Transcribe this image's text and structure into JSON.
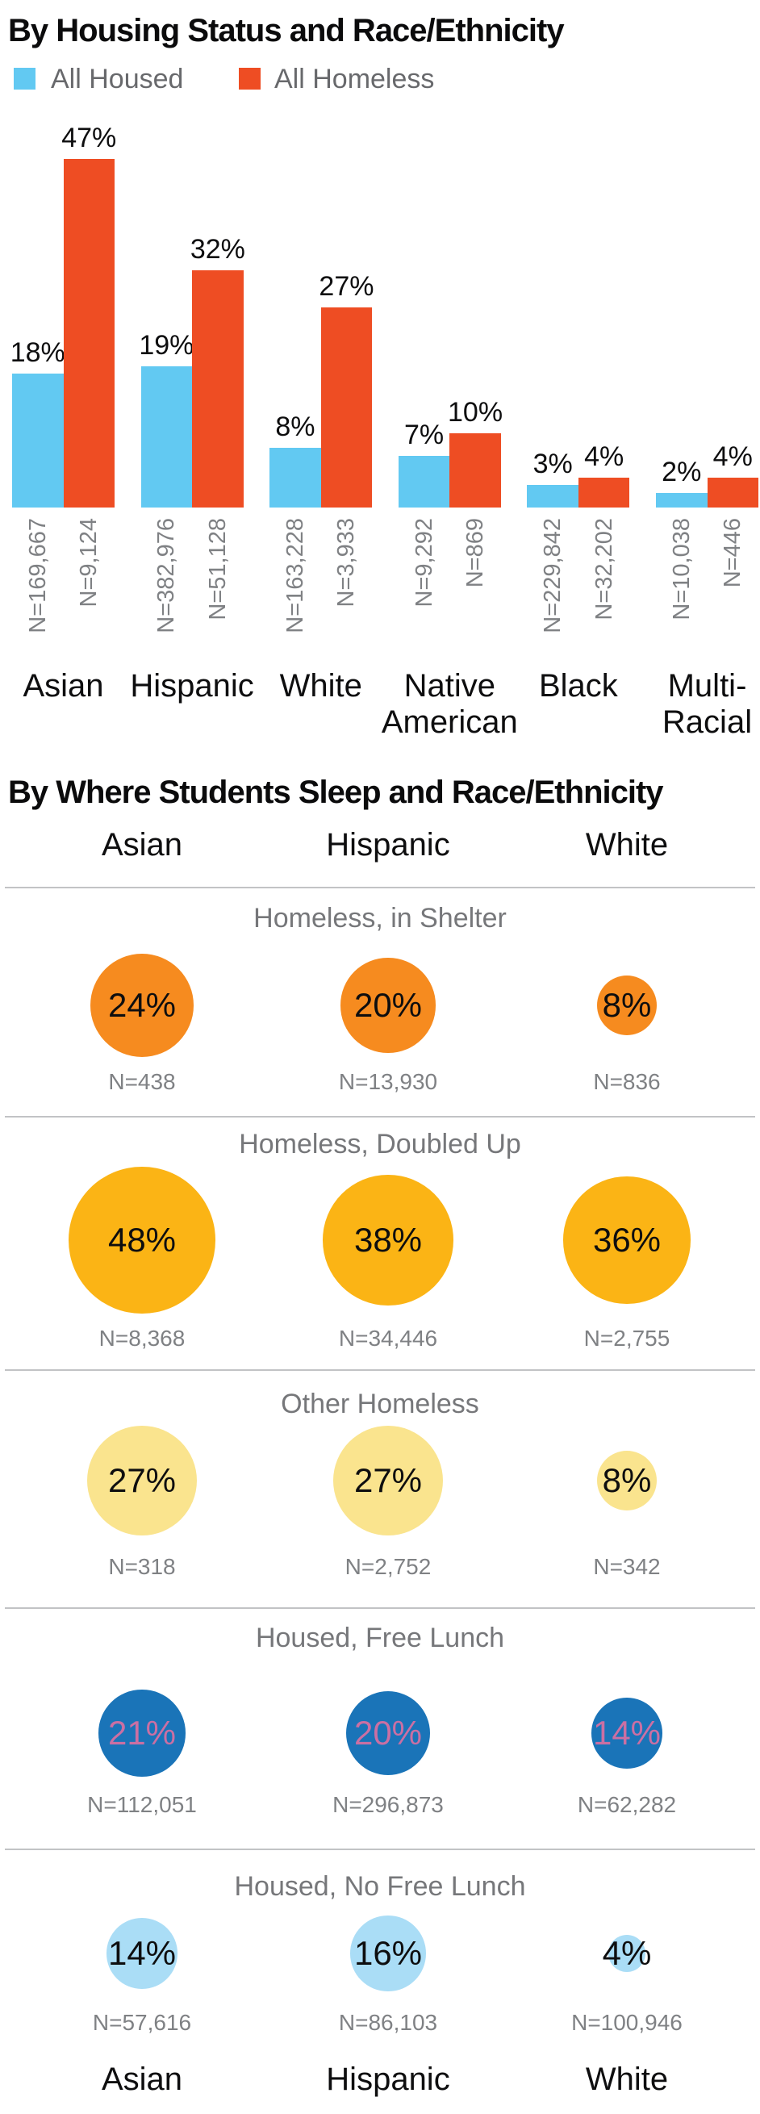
{
  "chart_data": [
    {
      "type": "bar",
      "title": "By Housing Status and Race/Ethnicity",
      "categories": [
        "Asian",
        "Hispanic",
        "White",
        "Native American",
        "Black",
        "Multi-Racial"
      ],
      "value_suffix": "%",
      "legend_position": "top-left",
      "ylim": [
        0,
        50
      ],
      "grid": false,
      "series": [
        {
          "name": "All Housed",
          "color": "#62c9f2",
          "values_pct": [
            18,
            19,
            8,
            7,
            3,
            2
          ],
          "n_labels": [
            "N=169,667",
            "N=382,976",
            "N=163,228",
            "N=9,292",
            "N=229,842",
            "N=10,038"
          ]
        },
        {
          "name": "All Homeless",
          "color": "#ee4d23",
          "values_pct": [
            47,
            32,
            27,
            10,
            4,
            4
          ],
          "n_labels": [
            "N=9,124",
            "N=51,128",
            "N=3,933",
            "N=869",
            "N=32,202",
            "N=446"
          ]
        }
      ]
    },
    {
      "type": "bubble-matrix",
      "title": "By Where Students Sleep and Race/Ethnicity",
      "columns": [
        "Asian",
        "Hispanic",
        "White"
      ],
      "footer_columns": [
        "Asian",
        "Hispanic",
        "White"
      ],
      "value_suffix": "%",
      "rows": [
        {
          "label": "Homeless, in Shelter",
          "color": "#f68b1f",
          "text_color": "#0e0e0f",
          "values_pct": [
            24,
            20,
            8
          ],
          "n_labels": [
            "N=438",
            "N=13,930",
            "N=836"
          ]
        },
        {
          "label": "Homeless, Doubled Up",
          "color": "#fbb415",
          "text_color": "#0e0e0f",
          "values_pct": [
            48,
            38,
            36
          ],
          "n_labels": [
            "N=8,368",
            "N=34,446",
            "N=2,755"
          ]
        },
        {
          "label": "Other Homeless",
          "color": "#fae48e",
          "text_color": "#0e0e0f",
          "values_pct": [
            27,
            27,
            8
          ],
          "n_labels": [
            "N=318",
            "N=2,752",
            "N=342"
          ]
        },
        {
          "label": "Housed, Free Lunch",
          "color": "#1a74b8",
          "text_color": "#cb6fa3",
          "values_pct": [
            21,
            20,
            14
          ],
          "n_labels": [
            "N=112,051",
            "N=296,873",
            "N=62,282"
          ]
        },
        {
          "label": "Housed, No Free Lunch",
          "color": "#aaddf6",
          "text_color": "#0e0e0f",
          "values_pct": [
            14,
            16,
            4
          ],
          "n_labels": [
            "N=57,616",
            "N=86,103",
            "N=100,946"
          ]
        }
      ]
    }
  ]
}
